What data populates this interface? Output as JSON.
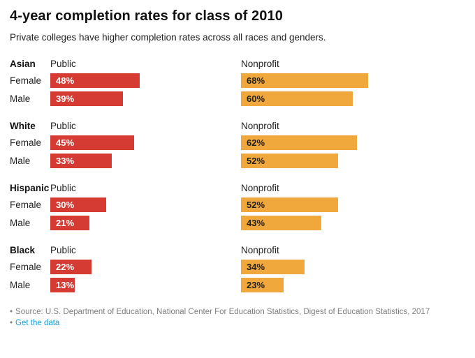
{
  "title": "4-year completion rates for class of 2010",
  "subtitle": "Private colleges have higher completion rates across all races and genders.",
  "footer": {
    "source_bullet": "•",
    "source": "Source: U.S. Department of Education, National Center For Education Statistics, Digest of Education Statistics, 2017",
    "link_bullet": "•",
    "link_label": "Get the data"
  },
  "colors": {
    "public_bar": "#d53b33",
    "nonprofit_bar": "#f0a73c",
    "public_bar_label": "#ffffff",
    "nonprofit_bar_label": "#222222",
    "link": "#189cd8",
    "source_text": "#7f7f7f"
  },
  "chart_data": {
    "type": "bar",
    "orientation": "horizontal",
    "unit": "%",
    "xlim": [
      0,
      100
    ],
    "title": "4-year completion rates for class of 2010",
    "row_labels": [
      "Female",
      "Male"
    ],
    "series": [
      {
        "name": "Public",
        "color": "#d53b33"
      },
      {
        "name": "Nonprofit",
        "color": "#f0a73c"
      }
    ],
    "groups": [
      {
        "race": "Asian",
        "values": {
          "Public": [
            48,
            39
          ],
          "Nonprofit": [
            68,
            60
          ]
        }
      },
      {
        "race": "White",
        "values": {
          "Public": [
            45,
            33
          ],
          "Nonprofit": [
            62,
            52
          ]
        }
      },
      {
        "race": "Hispanic",
        "values": {
          "Public": [
            30,
            21
          ],
          "Nonprofit": [
            52,
            43
          ]
        }
      },
      {
        "race": "Black",
        "values": {
          "Public": [
            22,
            13
          ],
          "Nonprofit": [
            34,
            23
          ]
        }
      }
    ]
  }
}
